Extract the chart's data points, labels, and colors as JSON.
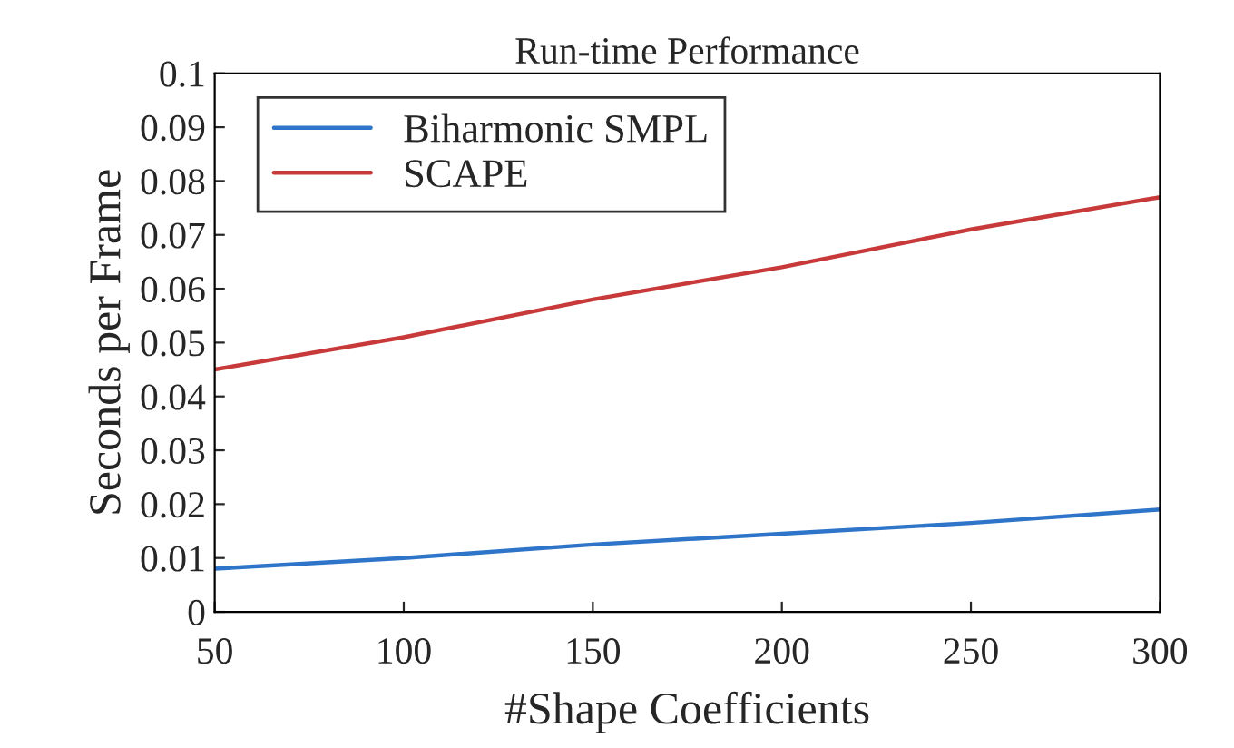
{
  "chart_data": {
    "type": "line",
    "title": "Run-time Performance",
    "xlabel": "#Shape Coefficients",
    "ylabel": "Seconds per Frame",
    "x": [
      50,
      100,
      150,
      200,
      250,
      300
    ],
    "series": [
      {
        "name": "Biharmonic SMPL",
        "color": "#2e75c9",
        "values": [
          0.008,
          0.01,
          0.0125,
          0.0145,
          0.0165,
          0.019
        ]
      },
      {
        "name": "SCAPE",
        "color": "#c8393a",
        "values": [
          0.045,
          0.051,
          0.058,
          0.064,
          0.071,
          0.077
        ]
      }
    ],
    "xlim": [
      50,
      300
    ],
    "xticks": [
      50,
      100,
      150,
      200,
      250,
      300
    ],
    "ylim": [
      0,
      0.1
    ],
    "yticks": [
      0,
      0.01,
      0.02,
      0.03,
      0.04,
      0.05,
      0.06,
      0.07,
      0.08,
      0.09,
      0.1
    ],
    "grid": false,
    "legend": "top left",
    "marker": "none",
    "line_style": "solid"
  }
}
